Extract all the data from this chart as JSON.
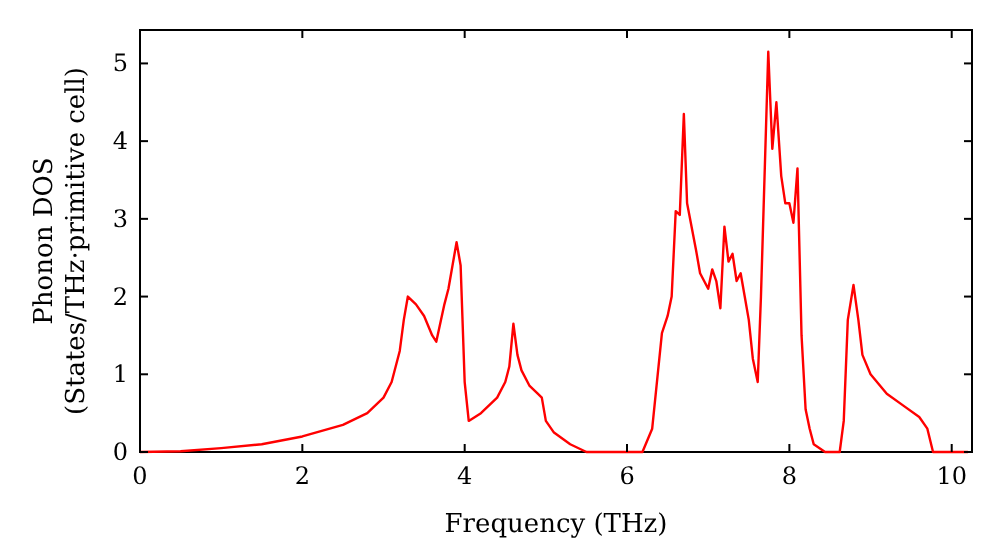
{
  "chart_data": {
    "type": "line",
    "xlabel": "Frequency (THz)",
    "ylabel": "Phonon DOS\n(States/THz·primitive cell)",
    "xlim": [
      0,
      10.25
    ],
    "ylim": [
      0,
      5.43
    ],
    "xticks": [
      0,
      2,
      4,
      6,
      8,
      10
    ],
    "yticks": [
      0,
      1,
      2,
      3,
      4,
      5
    ],
    "grid": false,
    "marker": "none",
    "line_style": "solid",
    "series": [
      {
        "color": "#ff0000",
        "x": [
          0,
          0.5,
          1,
          1.5,
          2,
          2.5,
          2.8,
          3.0,
          3.1,
          3.2,
          3.25,
          3.3,
          3.4,
          3.5,
          3.6,
          3.65,
          3.75,
          3.8,
          3.9,
          3.95,
          4.0,
          4.05,
          4.2,
          4.4,
          4.5,
          4.55,
          4.6,
          4.65,
          4.7,
          4.8,
          4.9,
          4.95,
          5.0,
          5.1,
          5.3,
          5.5,
          6.0,
          6.19,
          6.31,
          6.43,
          6.5,
          6.55,
          6.6,
          6.65,
          6.7,
          6.74,
          6.85,
          6.9,
          7.0,
          7.05,
          7.1,
          7.15,
          7.2,
          7.25,
          7.3,
          7.35,
          7.4,
          7.45,
          7.5,
          7.55,
          7.61,
          7.65,
          7.74,
          7.79,
          7.84,
          7.9,
          7.95,
          8.0,
          8.05,
          8.1,
          8.15,
          8.2,
          8.25,
          8.3,
          8.44,
          8.62,
          8.67,
          8.72,
          8.79,
          8.85,
          8.9,
          9.0,
          9.2,
          9.4,
          9.6,
          9.7,
          9.77,
          10.2
        ],
        "values": [
          0,
          0.01,
          0.05,
          0.1,
          0.2,
          0.35,
          0.5,
          0.7,
          0.9,
          1.3,
          1.7,
          2.0,
          1.9,
          1.75,
          1.5,
          1.42,
          1.9,
          2.1,
          2.7,
          2.4,
          0.9,
          0.4,
          0.5,
          0.7,
          0.9,
          1.1,
          1.65,
          1.25,
          1.05,
          0.85,
          0.75,
          0.7,
          0.4,
          0.25,
          0.1,
          0,
          0,
          0,
          0.3,
          1.53,
          1.75,
          2.0,
          3.1,
          3.05,
          4.35,
          3.2,
          2.6,
          2.3,
          2.1,
          2.35,
          2.2,
          1.85,
          2.9,
          2.45,
          2.55,
          2.2,
          2.3,
          2.0,
          1.7,
          1.2,
          0.9,
          2.0,
          5.15,
          3.9,
          4.5,
          3.55,
          3.2,
          3.2,
          2.95,
          3.65,
          1.5,
          0.55,
          0.3,
          0.1,
          0,
          0,
          0.4,
          1.7,
          2.15,
          1.7,
          1.25,
          1.0,
          0.75,
          0.6,
          0.45,
          0.3,
          0,
          0
        ]
      }
    ]
  }
}
